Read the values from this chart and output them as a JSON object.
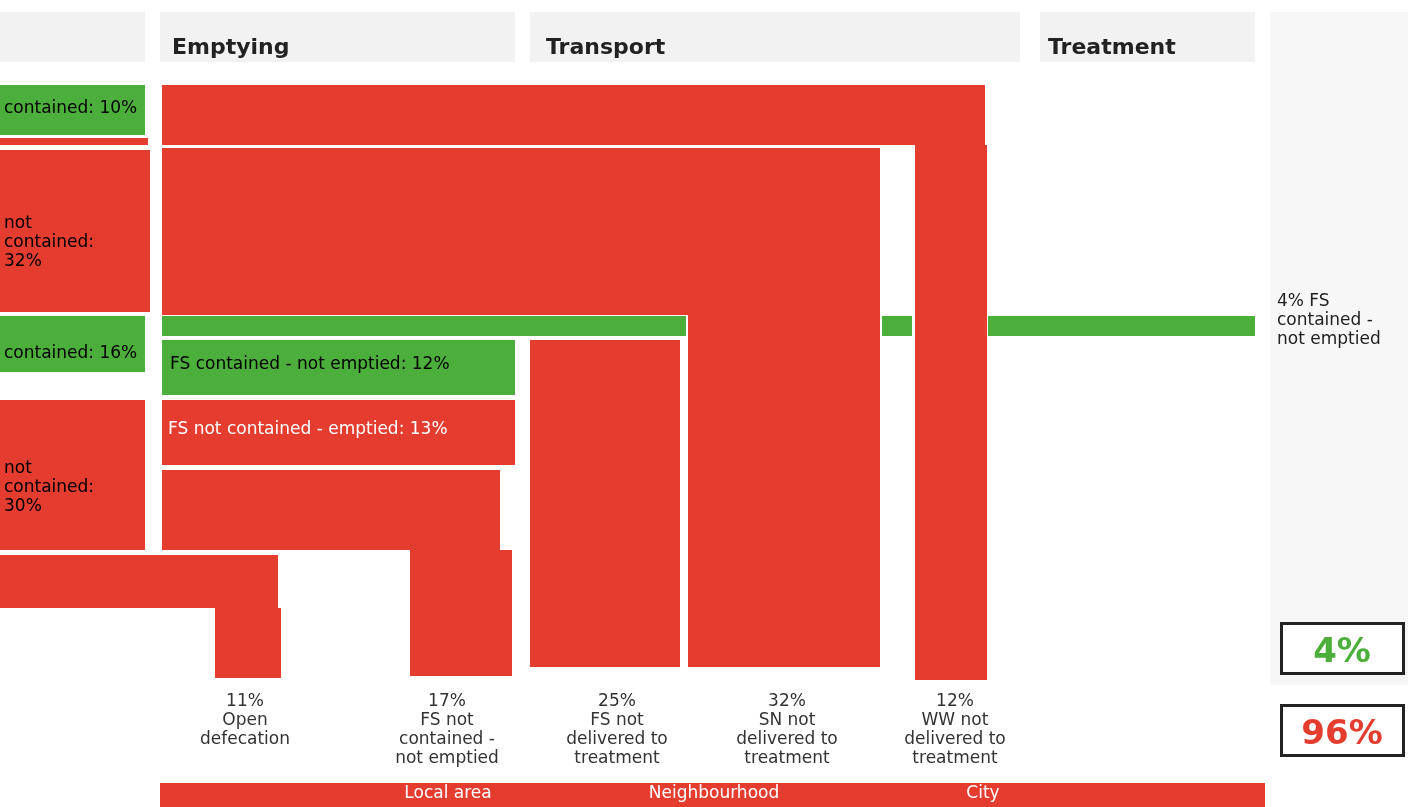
{
  "chart_data": {
    "type": "other",
    "categories": [
      "Open defecation",
      "FS not contained - not emptied",
      "FS not delivered to treatment",
      "SN not delivered to treatment",
      "WW not delivered to treatment"
    ],
    "values": [
      11,
      17,
      25,
      32,
      12
    ],
    "value_labels": [
      "11%",
      "17%",
      "25%",
      "32%",
      "12%"
    ],
    "colors": [
      "#e43d2f",
      "#e43d2f",
      "#e43d2f",
      "#e43d2f",
      "#e43d2f"
    ],
    "annotations": [
      "Emptying",
      "Transport",
      "Treatment",
      "contained: 10%",
      "not contained: 32%",
      "contained: 16%",
      "not contained: 30%",
      "FS contained - not emptied: 12%",
      "FS not contained - emptied: 13%",
      "4% FS contained - not emptied",
      "4%",
      "96%",
      "Local area",
      "Neighbourhood",
      "City"
    ]
  }
}
